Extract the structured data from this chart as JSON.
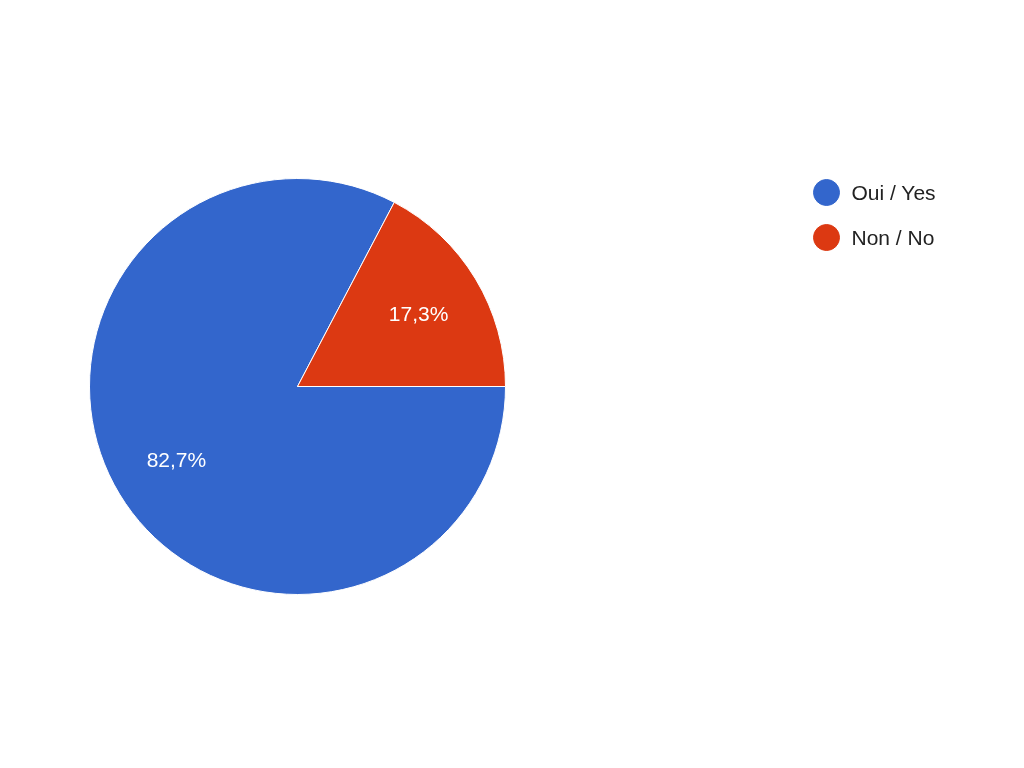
{
  "chart_data": {
    "type": "pie",
    "categories": [
      "Oui / Yes",
      "Non / No"
    ],
    "values": [
      82.7,
      17.3
    ],
    "colors": [
      "#3366cc",
      "#dc3912"
    ],
    "value_labels": [
      "82,7%",
      "17,3%"
    ],
    "legend": "top right"
  }
}
